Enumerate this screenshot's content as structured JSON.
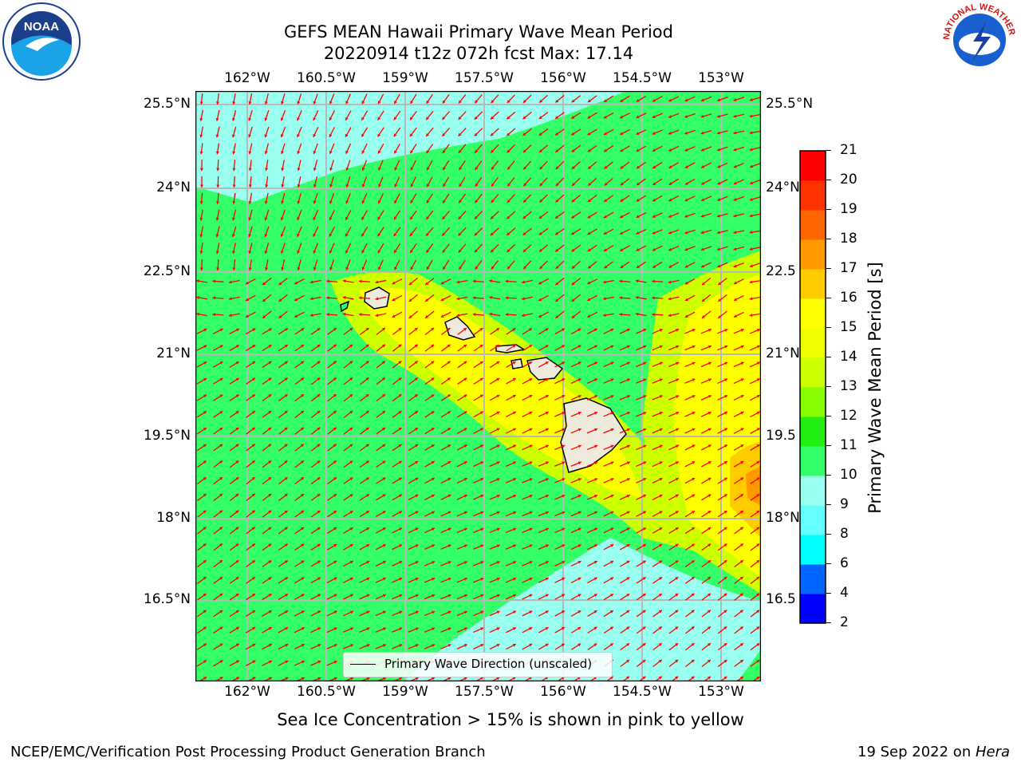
{
  "title": {
    "line1": "GEFS MEAN Hawaii Primary Wave Mean Period",
    "line2": "20220914 t12z 072h fcst   Max: 17.14"
  },
  "map": {
    "lon_labels": [
      "162°W",
      "160.5°W",
      "159°W",
      "157.5°W",
      "156°W",
      "154.5°W",
      "153°W"
    ],
    "lat_labels_left": [
      "25.5°N",
      "24°N",
      "22.5°N",
      "21°N",
      "19.5°N",
      "18°N",
      "16.5°N"
    ],
    "lat_labels_right": [
      "25.5°N",
      "24°N",
      "22.5",
      "21°N",
      "19.5",
      "18°N",
      "16.5"
    ],
    "legend_label": "Primary Wave Direction (unscaled)",
    "arrow_color": "#ff0000",
    "land_color": "#efebdc"
  },
  "colorbar": {
    "label": "Primary Wave Mean Period [s]",
    "ticks": [
      "2",
      "4",
      "6",
      "8",
      "9",
      "10",
      "11",
      "12",
      "13",
      "14",
      "15",
      "16",
      "17",
      "18",
      "19",
      "20",
      "21"
    ],
    "colors": [
      "#0000ff",
      "#0066ff",
      "#00ffff",
      "#66ffff",
      "#99ffee",
      "#33ff66",
      "#22ee11",
      "#88ff00",
      "#ccff00",
      "#eeff00",
      "#ffff00",
      "#ffcc00",
      "#ff9900",
      "#ff6600",
      "#ff3300",
      "#ff0000"
    ]
  },
  "caption": "Sea Ice Concentration > 15% is shown in pink to yellow",
  "footer": {
    "left": "NCEP/EMC/Verification Post Processing Product Generation Branch",
    "right_date": "19 Sep 2022 on ",
    "right_host": "Hera"
  },
  "logos": {
    "noaa": "NOAA",
    "nws": "NATIONAL WEATHER SERVICE"
  }
}
